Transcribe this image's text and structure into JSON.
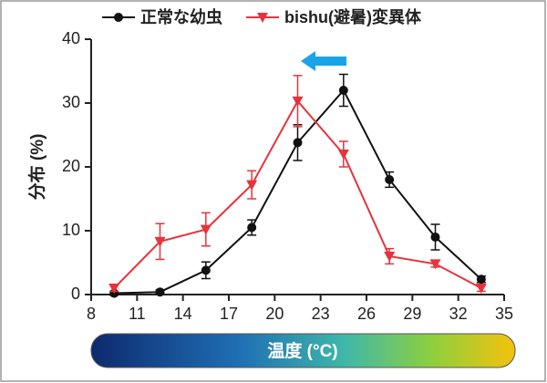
{
  "chart_data": {
    "type": "line",
    "x_label": "温度 (°C)",
    "y_label": "分布 (%)",
    "x": [
      9.5,
      12.5,
      15.5,
      18.5,
      21.5,
      24.5,
      27.5,
      30.5,
      33.5
    ],
    "series": [
      {
        "name": "正常な幼虫",
        "color": "#111111",
        "marker": "circle",
        "values": [
          0.2,
          0.4,
          3.8,
          10.5,
          23.8,
          32,
          18,
          9,
          2.4
        ],
        "errors": [
          0.3,
          0.3,
          1.3,
          1.2,
          2.8,
          2.5,
          1.2,
          2,
          0.5
        ]
      },
      {
        "name": "bishu(避暑)変異体",
        "color": "#e8323c",
        "marker": "triangle-down",
        "values": [
          1,
          8.3,
          10.2,
          17.2,
          30.3,
          22,
          6,
          4.8,
          1
        ],
        "errors": [
          0.5,
          2.8,
          2.6,
          2.2,
          4,
          2,
          1.2,
          0.5,
          0.5
        ]
      }
    ],
    "xlim": [
      8,
      35
    ],
    "xticks": [
      8,
      11,
      14,
      17,
      20,
      23,
      26,
      29,
      32,
      35
    ],
    "ylim": [
      0,
      40
    ],
    "yticks": [
      0,
      10,
      20,
      30,
      40
    ],
    "grid": false
  }
}
